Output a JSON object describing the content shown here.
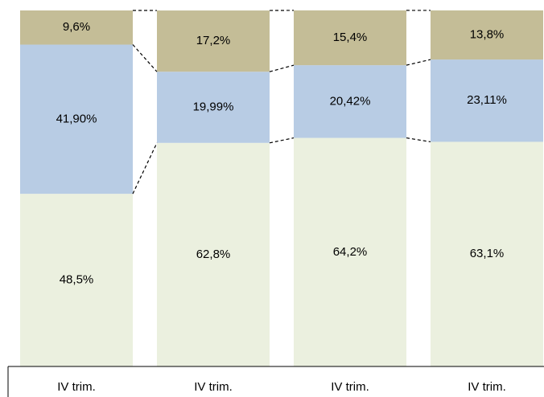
{
  "chart_data": {
    "type": "stacked_bar",
    "categories": [
      "IV trim.",
      "IV trim.",
      "IV trim.",
      "IV trim."
    ],
    "series": [
      {
        "color": "#ebf0df",
        "values": [
          48.5,
          62.8,
          64.2,
          63.1
        ],
        "value_labels": [
          "48,5%",
          "62,8%",
          "64,2%",
          "63,1%"
        ]
      },
      {
        "color": "#b8cce4",
        "values": [
          41.9,
          19.99,
          20.42,
          23.11
        ],
        "value_labels": [
          "41,90%",
          "19,99%",
          "20,42%",
          "23,11%"
        ]
      },
      {
        "color": "#c4bd97",
        "values": [
          9.6,
          17.2,
          15.4,
          13.8
        ],
        "value_labels": [
          "9,6%",
          "17,2%",
          "15,4%",
          "13,8%"
        ]
      }
    ],
    "ylim": [
      0,
      100
    ]
  }
}
